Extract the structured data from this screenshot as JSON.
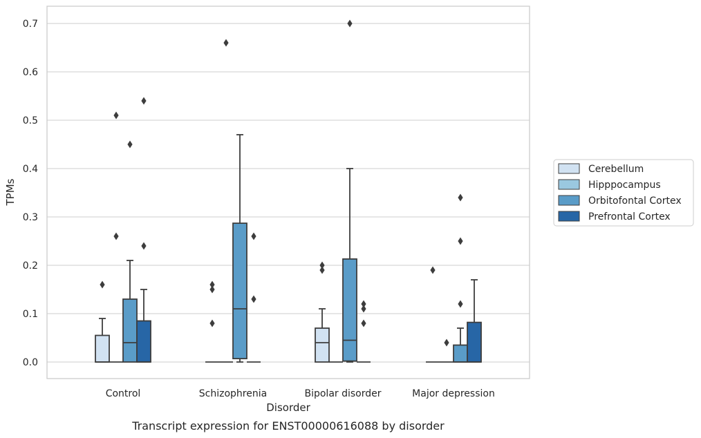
{
  "caption": "Transcript expression for ENST00000616088 by disorder",
  "chart_data": {
    "type": "box",
    "xlabel": "Disorder",
    "ylabel": "TPMs",
    "ylim": [
      -0.035,
      0.735
    ],
    "yticks": [
      0.0,
      0.1,
      0.2,
      0.3,
      0.4,
      0.5,
      0.6,
      0.7
    ],
    "ytick_labels": [
      "0.0",
      "0.1",
      "0.2",
      "0.3",
      "0.4",
      "0.5",
      "0.6",
      "0.7"
    ],
    "grid": "horizontal",
    "legend_position": "right",
    "categories": [
      "Control",
      "Schizophrenia",
      "Bipolar disorder",
      "Major depression"
    ],
    "series": [
      {
        "name": "Cerebellum",
        "color": "#d1e2f2",
        "boxes": [
          {
            "q1": 0.0,
            "median": 0.0,
            "q3": 0.055,
            "whislo": 0.0,
            "whishi": 0.09,
            "fliers": [
              0.16
            ]
          },
          {
            "q1": 0.0,
            "median": 0.0,
            "q3": 0.0,
            "whislo": 0.0,
            "whishi": 0.0,
            "fliers": [
              0.08,
              0.15,
              0.16
            ]
          },
          {
            "q1": 0.0,
            "median": 0.04,
            "q3": 0.07,
            "whislo": 0.0,
            "whishi": 0.11,
            "fliers": [
              0.19,
              0.2
            ]
          },
          {
            "q1": 0.0,
            "median": 0.0,
            "q3": 0.0,
            "whislo": 0.0,
            "whishi": 0.0,
            "fliers": [
              0.19
            ]
          }
        ]
      },
      {
        "name": "Hipppocampus",
        "color": "#9ac8e0",
        "boxes": [
          {
            "q1": 0.0,
            "median": 0.0,
            "q3": 0.0,
            "whislo": 0.0,
            "whishi": 0.0,
            "fliers": [
              0.26,
              0.51
            ]
          },
          {
            "q1": 0.0,
            "median": 0.0,
            "q3": 0.0,
            "whislo": 0.0,
            "whishi": 0.0,
            "fliers": [
              0.66
            ]
          },
          {
            "q1": 0.0,
            "median": 0.0,
            "q3": 0.0,
            "whislo": 0.0,
            "whishi": 0.0,
            "fliers": []
          },
          {
            "q1": 0.0,
            "median": 0.0,
            "q3": 0.0,
            "whislo": 0.0,
            "whishi": 0.0,
            "fliers": [
              0.04
            ]
          }
        ]
      },
      {
        "name": "Orbitofontal Cortex",
        "color": "#5a9cc8",
        "boxes": [
          {
            "q1": 0.0,
            "median": 0.04,
            "q3": 0.13,
            "whislo": 0.0,
            "whishi": 0.21,
            "fliers": [
              0.45
            ]
          },
          {
            "q1": 0.007,
            "median": 0.11,
            "q3": 0.287,
            "whislo": 0.0,
            "whishi": 0.47,
            "fliers": []
          },
          {
            "q1": 0.002,
            "median": 0.045,
            "q3": 0.213,
            "whislo": 0.0,
            "whishi": 0.4,
            "fliers": [
              0.7
            ]
          },
          {
            "q1": 0.0,
            "median": 0.0,
            "q3": 0.035,
            "whislo": 0.0,
            "whishi": 0.07,
            "fliers": [
              0.12,
              0.25,
              0.34
            ]
          }
        ]
      },
      {
        "name": "Prefrontal Cortex",
        "color": "#2766a6",
        "boxes": [
          {
            "q1": 0.0,
            "median": 0.0,
            "q3": 0.085,
            "whislo": 0.0,
            "whishi": 0.15,
            "fliers": [
              0.24,
              0.54
            ]
          },
          {
            "q1": 0.0,
            "median": 0.0,
            "q3": 0.0,
            "whislo": 0.0,
            "whishi": 0.0,
            "fliers": [
              0.13,
              0.26
            ]
          },
          {
            "q1": 0.0,
            "median": 0.0,
            "q3": 0.0,
            "whislo": 0.0,
            "whishi": 0.0,
            "fliers": [
              0.08,
              0.11,
              0.12
            ]
          },
          {
            "q1": 0.0,
            "median": 0.0,
            "q3": 0.082,
            "whislo": 0.0,
            "whishi": 0.17,
            "fliers": []
          }
        ]
      }
    ]
  }
}
